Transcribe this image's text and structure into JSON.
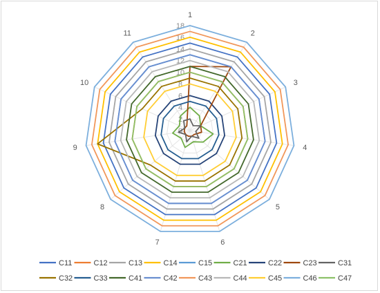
{
  "chart_data": {
    "type": "radar",
    "categories": [
      "1",
      "2",
      "3",
      "4",
      "5",
      "6",
      "7",
      "8",
      "9",
      "10",
      "11"
    ],
    "rlim": [
      0,
      18
    ],
    "ticks": [
      0,
      2,
      4,
      6,
      8,
      10,
      12,
      14,
      16,
      18
    ],
    "ticks_display": [
      "0",
      "2",
      "4",
      "6",
      "8",
      "10",
      "12",
      "14",
      "16",
      "18"
    ],
    "legend_position": "bottom",
    "series": [
      {
        "name": "C11",
        "color": "#4472C4",
        "values": [
          15,
          15,
          15,
          15,
          15,
          15,
          15,
          15,
          15,
          15,
          15
        ]
      },
      {
        "name": "C12",
        "color": "#ED7D31",
        "values": [
          10,
          10,
          10,
          10,
          10,
          10,
          10,
          10,
          10,
          10,
          10
        ]
      },
      {
        "name": "C13",
        "color": "#A5A5A5",
        "values": [
          14,
          14,
          14,
          14,
          14,
          14,
          14,
          14,
          14,
          14,
          14
        ]
      },
      {
        "name": "C14",
        "color": "#FFC000",
        "values": [
          16,
          16,
          16,
          16,
          16,
          16,
          16,
          16,
          16,
          16,
          16
        ]
      },
      {
        "name": "C15",
        "color": "#5B9BD5",
        "values": [
          13,
          13,
          13,
          13,
          13,
          13,
          13,
          13,
          13,
          13,
          13
        ]
      },
      {
        "name": "C21",
        "color": "#70AD47",
        "values": [
          4,
          3,
          2,
          4,
          3,
          2,
          3,
          2,
          3,
          2,
          3
        ]
      },
      {
        "name": "C22",
        "color": "#264478",
        "values": [
          6,
          6,
          6,
          6,
          6,
          6,
          6,
          6,
          6,
          6,
          6
        ]
      },
      {
        "name": "C23",
        "color": "#9E480E",
        "values": [
          11,
          13,
          2,
          2,
          1,
          1,
          1,
          1,
          1,
          1,
          1
        ]
      },
      {
        "name": "C31",
        "color": "#636363",
        "values": [
          2,
          1,
          2,
          1,
          2,
          1,
          2,
          1,
          2,
          1,
          2
        ]
      },
      {
        "name": "C32",
        "color": "#997300",
        "values": [
          9,
          9,
          9,
          9,
          9,
          9,
          9,
          9,
          16,
          9,
          9
        ]
      },
      {
        "name": "C33",
        "color": "#255E91",
        "values": [
          5,
          5,
          5,
          5,
          5,
          5,
          5,
          5,
          5,
          5,
          5
        ]
      },
      {
        "name": "C41",
        "color": "#43682B",
        "values": [
          11,
          11,
          11,
          11,
          11,
          11,
          11,
          11,
          11,
          11,
          11
        ]
      },
      {
        "name": "C42",
        "color": "#698ED0",
        "values": [
          13,
          13,
          13,
          13,
          13,
          13,
          13,
          13,
          13,
          13,
          13
        ]
      },
      {
        "name": "C43",
        "color": "#F1975A",
        "values": [
          17,
          17,
          17,
          17,
          17,
          17,
          17,
          17,
          17,
          17,
          17
        ]
      },
      {
        "name": "C44",
        "color": "#B7B7B7",
        "values": [
          12,
          12,
          12,
          12,
          12,
          12,
          12,
          12,
          12,
          12,
          12
        ]
      },
      {
        "name": "C45",
        "color": "#FFCD33",
        "values": [
          8,
          8,
          8,
          8,
          8,
          8,
          8,
          8,
          8,
          8,
          8
        ]
      },
      {
        "name": "C46",
        "color": "#7CAFDD",
        "values": [
          18,
          18,
          18,
          18,
          18,
          18,
          18,
          18,
          18,
          18,
          18
        ]
      },
      {
        "name": "C47",
        "color": "#8CC168",
        "values": [
          10,
          10,
          10,
          10,
          10,
          10,
          10,
          10,
          10,
          10,
          10
        ]
      }
    ]
  }
}
